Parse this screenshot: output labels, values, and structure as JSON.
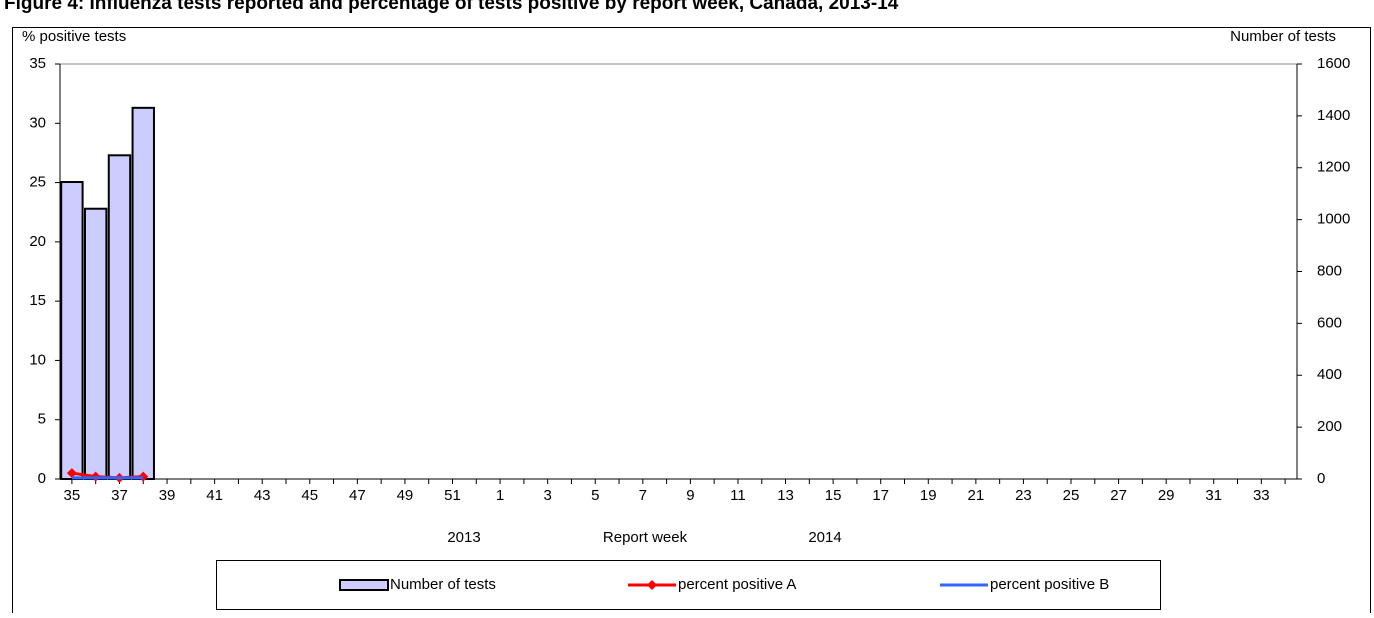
{
  "chart_data": {
    "type": "bar",
    "title": "Figure 4: Influenza tests reported and percentage of tests positive by report week, Canada, 2013-14",
    "categories": [
      "35",
      null,
      "37",
      null,
      "39",
      null,
      "41",
      null,
      "43",
      null,
      "45",
      null,
      "47",
      null,
      "49",
      null,
      "51",
      null,
      "1",
      null,
      "3",
      null,
      "5",
      null,
      "7",
      null,
      "9",
      null,
      "11",
      null,
      "13",
      null,
      "15",
      null,
      "17",
      null,
      "19",
      null,
      "21",
      null,
      "23",
      null,
      "25",
      null,
      "27",
      null,
      "29",
      null,
      "31",
      null,
      "33",
      null
    ],
    "xlabel": "Report week",
    "annotations": [
      "2013",
      "2014"
    ],
    "ylabel": "% positive tests",
    "y2label": "Number of tests",
    "ylim": [
      0,
      35
    ],
    "yticks": [
      0,
      5,
      10,
      15,
      20,
      25,
      30,
      35
    ],
    "y2lim": [
      0,
      1600
    ],
    "y2ticks": [
      0,
      200,
      400,
      600,
      800,
      1000,
      1200,
      1400,
      1600
    ],
    "series": [
      {
        "name": "Number of tests",
        "type": "bar",
        "axis": "y2",
        "color": "#ccccff",
        "values": [
          1145,
          1042,
          1248,
          1431,
          null,
          null,
          null,
          null,
          null,
          null,
          null,
          null,
          null,
          null,
          null,
          null,
          null,
          null,
          null,
          null,
          null,
          null,
          null,
          null,
          null,
          null,
          null,
          null,
          null,
          null,
          null,
          null,
          null,
          null,
          null,
          null,
          null,
          null,
          null,
          null,
          null,
          null,
          null,
          null,
          null,
          null,
          null,
          null,
          null,
          null,
          null,
          null
        ]
      },
      {
        "name": "percent positive A",
        "type": "line",
        "axis": "y",
        "color": "#ff0000",
        "values": [
          0.5,
          0.2,
          0.1,
          0.2,
          null,
          null,
          null,
          null,
          null,
          null,
          null,
          null,
          null,
          null,
          null,
          null,
          null,
          null,
          null,
          null,
          null,
          null,
          null,
          null,
          null,
          null,
          null,
          null,
          null,
          null,
          null,
          null,
          null,
          null,
          null,
          null,
          null,
          null,
          null,
          null,
          null,
          null,
          null,
          null,
          null,
          null,
          null,
          null,
          null,
          null,
          null,
          null
        ]
      },
      {
        "name": "percent positive B",
        "type": "line",
        "axis": "y",
        "color": "#3366ff",
        "values": [
          0.1,
          0.1,
          0.1,
          0.1,
          null,
          null,
          null,
          null,
          null,
          null,
          null,
          null,
          null,
          null,
          null,
          null,
          null,
          null,
          null,
          null,
          null,
          null,
          null,
          null,
          null,
          null,
          null,
          null,
          null,
          null,
          null,
          null,
          null,
          null,
          null,
          null,
          null,
          null,
          null,
          null,
          null,
          null,
          null,
          null,
          null,
          null,
          null,
          null,
          null,
          null,
          null,
          null
        ]
      }
    ]
  }
}
